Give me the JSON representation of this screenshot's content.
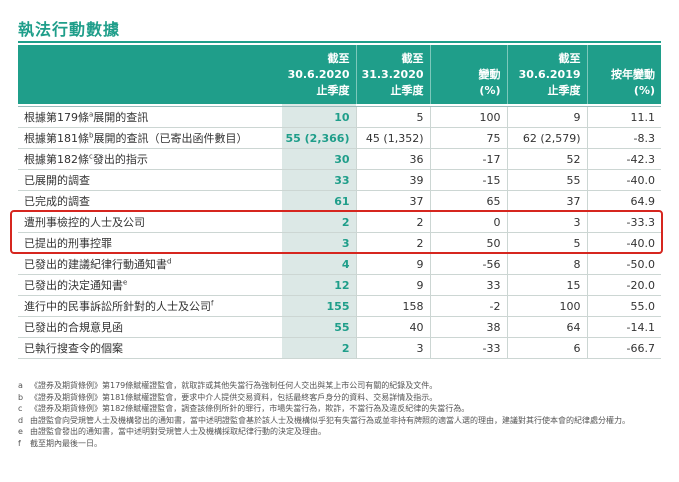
{
  "title": "執法行動數據",
  "headers": [
    {
      "l1": "",
      "l2": "",
      "l3": ""
    },
    {
      "l1": "截至",
      "l2": "30.6.2020",
      "l3": "止季度"
    },
    {
      "l1": "截至",
      "l2": "31.3.2020",
      "l3": "止季度"
    },
    {
      "l1": "",
      "l2": "變動",
      "l3": "(%)"
    },
    {
      "l1": "截至",
      "l2": "30.6.2019",
      "l3": "止季度"
    },
    {
      "l1": "",
      "l2": "按年變動",
      "l3": "(%)"
    }
  ],
  "rows": [
    {
      "label": "根據第179條",
      "sup": "a",
      "label_after": "展開的查訊",
      "q2_2020": "10",
      "q1_2020": "5",
      "change": "100",
      "q2_2019": "9",
      "yoy": "11.1"
    },
    {
      "label": "根據第181條",
      "sup": "b",
      "label_after": "展開的查訊（已寄出函件數目）",
      "q2_2020": "55 (2,366)",
      "q1_2020": "45 (1,352)",
      "change": "75",
      "q2_2019": "62 (2,579)",
      "yoy": "-8.3"
    },
    {
      "label": "根據第182條",
      "sup": "c",
      "label_after": "發出的指示",
      "q2_2020": "30",
      "q1_2020": "36",
      "change": "-17",
      "q2_2019": "52",
      "yoy": "-42.3"
    },
    {
      "label": "已展開的調查",
      "sup": "",
      "label_after": "",
      "q2_2020": "33",
      "q1_2020": "39",
      "change": "-15",
      "q2_2019": "55",
      "yoy": "-40.0"
    },
    {
      "label": "已完成的調查",
      "sup": "",
      "label_after": "",
      "q2_2020": "61",
      "q1_2020": "37",
      "change": "65",
      "q2_2019": "37",
      "yoy": "64.9"
    },
    {
      "label": "遭刑事檢控的人士及公司",
      "sup": "",
      "label_after": "",
      "q2_2020": "2",
      "q1_2020": "2",
      "change": "0",
      "q2_2019": "3",
      "yoy": "-33.3"
    },
    {
      "label": "已提出的刑事控罪",
      "sup": "",
      "label_after": "",
      "q2_2020": "3",
      "q1_2020": "2",
      "change": "50",
      "q2_2019": "5",
      "yoy": "-40.0"
    },
    {
      "label": "已發出的建議紀律行動通知書",
      "sup": "d",
      "label_after": "",
      "q2_2020": "4",
      "q1_2020": "9",
      "change": "-56",
      "q2_2019": "8",
      "yoy": "-50.0"
    },
    {
      "label": "已發出的決定通知書",
      "sup": "e",
      "label_after": "",
      "q2_2020": "12",
      "q1_2020": "9",
      "change": "33",
      "q2_2019": "15",
      "yoy": "-20.0"
    },
    {
      "label": "進行中的民事訴訟所針對的人士及公司",
      "sup": "f",
      "label_after": "",
      "q2_2020": "155",
      "q1_2020": "158",
      "change": "-2",
      "q2_2019": "100",
      "yoy": "55.0"
    },
    {
      "label": "已發出的合規意見函",
      "sup": "",
      "label_after": "",
      "q2_2020": "55",
      "q1_2020": "40",
      "change": "38",
      "q2_2019": "64",
      "yoy": "-14.1"
    },
    {
      "label": "已執行搜查令的個案",
      "sup": "",
      "label_after": "",
      "q2_2020": "2",
      "q1_2020": "3",
      "change": "-33",
      "q2_2019": "6",
      "yoy": "-66.7"
    }
  ],
  "notes": [
    {
      "k": "a",
      "t": "《證券及期貨條例》第179條賦權證監會，就取詐或其他失當行為強制任何人交出與某上市公司有關的紀錄及文件。"
    },
    {
      "k": "b",
      "t": "《證券及期貨條例》第181條賦權證監會，要求中介人提供交易資料，包括最終客戶身分的資料、交易詳情及指示。"
    },
    {
      "k": "c",
      "t": "《證券及期貨條例》第182條賦權證監會，調查該條例所針的罪行，市場失當行為，欺詐，不當行為及違反紀律的失當行為。"
    },
    {
      "k": "d",
      "t": "由證監會向受規管人士及機構發出的通知書，當中述明證監會基於該人士及機構似乎犯有失當行為或並非持有牌照的適當人選的理由，建議對其行使本會的紀律處分權力。"
    },
    {
      "k": "e",
      "t": "由證監會發出的通知書，當中述明對受規管人士及機構採取紀律行動的決定及理由。"
    },
    {
      "k": "f",
      "t": "截至期內最後一日。"
    }
  ]
}
